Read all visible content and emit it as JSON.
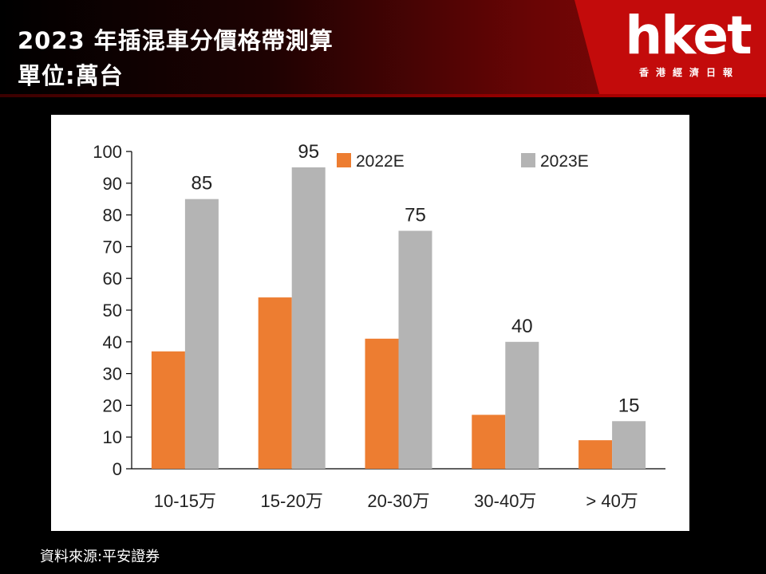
{
  "header": {
    "title_line1": "2023 年插混車分價格帶測算",
    "title_line2": "單位:萬台"
  },
  "logo": {
    "wordmark": "hket",
    "subtitle": "香港經濟日報"
  },
  "source": "資料來源:平安證券",
  "colors": {
    "series_2022": "#ED7D31",
    "series_2023": "#B4B4B4",
    "header_red": "#C30B0B"
  },
  "chart_data": {
    "type": "bar",
    "categories": [
      "10-15万",
      "15-20万",
      "20-30万",
      "30-40万",
      "> 40万"
    ],
    "series": [
      {
        "name": "2022E",
        "values": [
          37,
          54,
          41,
          17,
          9
        ]
      },
      {
        "name": "2023E",
        "values": [
          85,
          95,
          75,
          40,
          15
        ],
        "data_labels": [
          "85",
          "95",
          "75",
          "40",
          "15"
        ]
      }
    ],
    "ylim": [
      0,
      100
    ],
    "yticks": [
      0,
      10,
      20,
      30,
      40,
      50,
      60,
      70,
      80,
      90,
      100
    ],
    "grid": false,
    "legend": "top"
  }
}
